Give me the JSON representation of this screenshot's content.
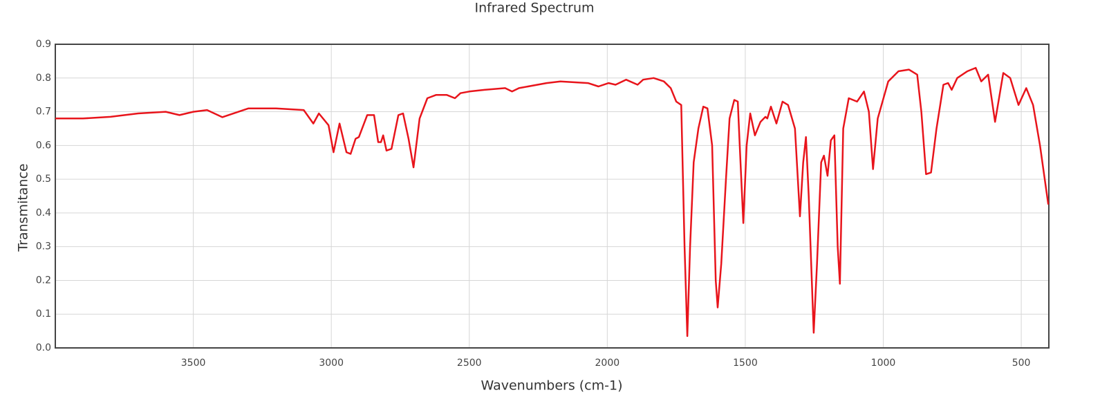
{
  "chart_data": {
    "type": "line",
    "title": "Infrared Spectrum",
    "x_label": "Wavenumbers (cm-1)",
    "y_label": "Transmitance",
    "xlim": [
      4000,
      400
    ],
    "ylim": [
      0,
      0.9
    ],
    "xticks": [
      3500,
      3000,
      2500,
      2000,
      1500,
      1000,
      500
    ],
    "yticks": [
      {
        "value": 0,
        "label": "0.0"
      },
      0.1,
      0.2,
      0.3,
      0.4,
      0.5,
      0.6,
      0.7,
      0.8,
      0.9
    ],
    "grid": true,
    "color": "#e8141b",
    "x": [
      4000,
      3900,
      3800,
      3700,
      3600,
      3550,
      3500,
      3450,
      3395,
      3300,
      3200,
      3100,
      3065,
      3045,
      3010,
      2992,
      2970,
      2945,
      2930,
      2912,
      2900,
      2870,
      2845,
      2830,
      2820,
      2812,
      2800,
      2782,
      2757,
      2740,
      2720,
      2702,
      2680,
      2652,
      2620,
      2582,
      2552,
      2532,
      2500,
      2445,
      2370,
      2345,
      2320,
      2220,
      2170,
      2070,
      2032,
      1995,
      1970,
      1932,
      1890,
      1870,
      1832,
      1795,
      1770,
      1750,
      1732,
      1720,
      1710,
      1700,
      1687,
      1670,
      1652,
      1637,
      1620,
      1607,
      1600,
      1587,
      1570,
      1557,
      1540,
      1527,
      1520,
      1507,
      1495,
      1482,
      1465,
      1445,
      1427,
      1420,
      1407,
      1387,
      1365,
      1345,
      1320,
      1302,
      1290,
      1280,
      1270,
      1252,
      1240,
      1225,
      1215,
      1202,
      1190,
      1177,
      1165,
      1157,
      1145,
      1125,
      1095,
      1070,
      1052,
      1037,
      1020,
      982,
      945,
      907,
      877,
      862,
      845,
      827,
      807,
      782,
      765,
      752,
      732,
      695,
      665,
      645,
      620,
      595,
      565,
      540,
      510,
      482,
      457,
      432,
      402
    ],
    "values": [
      0.68,
      0.68,
      0.685,
      0.695,
      0.7,
      0.69,
      0.7,
      0.705,
      0.684,
      0.71,
      0.71,
      0.705,
      0.665,
      0.695,
      0.66,
      0.58,
      0.665,
      0.58,
      0.575,
      0.62,
      0.625,
      0.69,
      0.69,
      0.61,
      0.61,
      0.63,
      0.585,
      0.59,
      0.69,
      0.695,
      0.62,
      0.535,
      0.68,
      0.74,
      0.75,
      0.75,
      0.74,
      0.755,
      0.76,
      0.765,
      0.77,
      0.76,
      0.77,
      0.785,
      0.79,
      0.785,
      0.775,
      0.785,
      0.78,
      0.795,
      0.78,
      0.795,
      0.8,
      0.79,
      0.77,
      0.73,
      0.72,
      0.3,
      0.035,
      0.3,
      0.55,
      0.65,
      0.715,
      0.71,
      0.6,
      0.2,
      0.12,
      0.25,
      0.5,
      0.68,
      0.735,
      0.73,
      0.6,
      0.37,
      0.6,
      0.695,
      0.63,
      0.67,
      0.685,
      0.68,
      0.715,
      0.665,
      0.73,
      0.72,
      0.65,
      0.39,
      0.55,
      0.625,
      0.45,
      0.045,
      0.25,
      0.55,
      0.57,
      0.51,
      0.615,
      0.63,
      0.3,
      0.19,
      0.65,
      0.74,
      0.73,
      0.76,
      0.7,
      0.53,
      0.68,
      0.79,
      0.82,
      0.825,
      0.81,
      0.7,
      0.515,
      0.52,
      0.65,
      0.78,
      0.785,
      0.765,
      0.8,
      0.82,
      0.83,
      0.79,
      0.81,
      0.67,
      0.815,
      0.8,
      0.72,
      0.77,
      0.72,
      0.6,
      0.425
    ]
  }
}
